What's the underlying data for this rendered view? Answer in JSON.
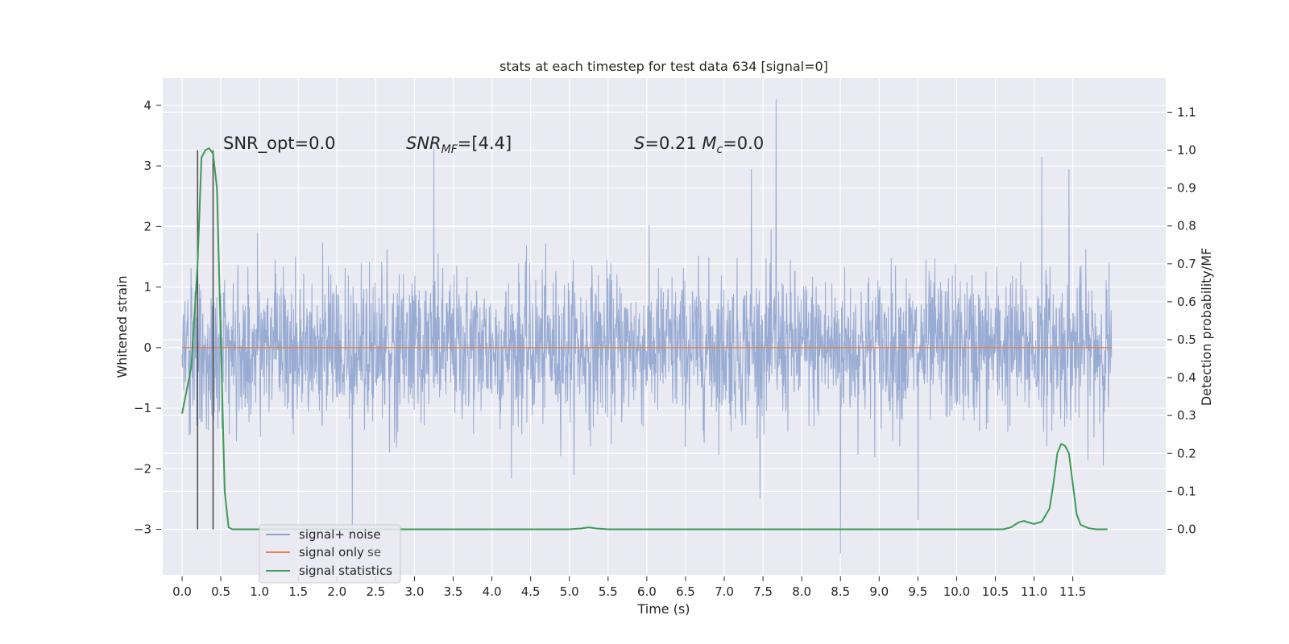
{
  "chart_data": {
    "type": "line",
    "title": "stats at each timestep for test data 634 [signal=0]",
    "xlabel": "Time (s)",
    "ylabel": "Whitened strain",
    "y2label": "Detection probability/MF",
    "xlim": [
      -0.25,
      12.7
    ],
    "ylim": [
      -3.75,
      4.45
    ],
    "y2lim": [
      -0.12,
      1.19
    ],
    "xticks": [
      0.0,
      0.5,
      1.0,
      1.5,
      2.0,
      2.5,
      3.0,
      3.5,
      4.0,
      4.5,
      5.0,
      5.5,
      6.0,
      6.5,
      7.0,
      7.5,
      8.0,
      8.5,
      9.0,
      9.5,
      10.0,
      10.5,
      11.0,
      11.5
    ],
    "xtick_labels": [
      "0.0",
      "0.5",
      "1.0",
      "1.5",
      "2.0",
      "2.5",
      "3.0",
      "3.5",
      "4.0",
      "4.5",
      "5.0",
      "5.5",
      "6.0",
      "6.5",
      "7.0",
      "7.5",
      "8.0",
      "8.5",
      "9.0",
      "9.5",
      "10.0",
      "10.5",
      "11.0",
      "11.5"
    ],
    "yticks": [
      -3,
      -2,
      -1,
      0,
      1,
      2,
      3,
      4
    ],
    "ytick_labels": [
      "−3",
      "−2",
      "−1",
      "0",
      "1",
      "2",
      "3",
      "4"
    ],
    "y2ticks": [
      0.0,
      0.1,
      0.2,
      0.3,
      0.4,
      0.5,
      0.6,
      0.7,
      0.8,
      0.9,
      1.0,
      1.1
    ],
    "y2tick_labels": [
      "0.0",
      "0.1",
      "0.2",
      "0.3",
      "0.4",
      "0.5",
      "0.6",
      "0.7",
      "0.8",
      "0.9",
      "1.0",
      "1.1"
    ],
    "grid": true,
    "legend_position": "lower-left",
    "series": [
      {
        "name": "signal+ noise",
        "color": "#8fa4cf",
        "axis": "left",
        "t_range": [
          0.0,
          12.0
        ],
        "typical_amplitude": [
          -1.0,
          1.0
        ],
        "spikes": [
          {
            "x": 7.67,
            "y": 4.1
          },
          {
            "x": 3.25,
            "y": 3.3
          },
          {
            "x": 11.1,
            "y": 3.15
          },
          {
            "x": 11.45,
            "y": 2.95
          },
          {
            "x": 7.35,
            "y": 2.95
          },
          {
            "x": 8.5,
            "y": -3.4
          },
          {
            "x": 2.2,
            "y": -3.1
          },
          {
            "x": 9.5,
            "y": -2.85
          }
        ]
      },
      {
        "name": "signal only",
        "color": "#dd8452",
        "axis": "left",
        "x": [
          0.0,
          12.0
        ],
        "y": [
          0.0,
          0.0
        ]
      },
      {
        "name": "signal statistics",
        "color": "#3d9b55",
        "axis": "right",
        "x": [
          0.0,
          0.12,
          0.2,
          0.25,
          0.3,
          0.35,
          0.4,
          0.45,
          0.5,
          0.55,
          0.6,
          0.65,
          1.0,
          5.0,
          5.15,
          5.25,
          5.35,
          5.5,
          6.0,
          10.6,
          10.7,
          10.8,
          10.87,
          10.93,
          11.0,
          11.1,
          11.2,
          11.25,
          11.3,
          11.35,
          11.4,
          11.45,
          11.5,
          11.55,
          11.6,
          11.7,
          11.8,
          11.95
        ],
        "y": [
          0.305,
          0.43,
          0.7,
          0.98,
          1.0,
          1.005,
          0.99,
          0.9,
          0.5,
          0.1,
          0.005,
          0.0,
          0.0,
          0.0,
          0.002,
          0.005,
          0.002,
          0.0,
          0.0,
          0.0,
          0.005,
          0.018,
          0.022,
          0.018,
          0.014,
          0.02,
          0.055,
          0.12,
          0.2,
          0.225,
          0.22,
          0.2,
          0.12,
          0.04,
          0.012,
          0.003,
          0.0,
          0.0
        ]
      }
    ],
    "vertical_lines": [
      {
        "x": 0.2,
        "color": "#4a4a4a"
      },
      {
        "x": 0.4,
        "color": "#4a4a4a"
      }
    ],
    "annotations": [
      {
        "x": 0.2,
        "y": 3.3,
        "text": "SNR_opt=0.0"
      },
      {
        "x": 2.6,
        "y": 3.3,
        "text": "SNR_MF=[4.4]"
      },
      {
        "x": 5.6,
        "y": 3.3,
        "text": "S=0.21   M_c=0.0"
      }
    ],
    "legend_overlap_text": "se"
  },
  "colors": {
    "background": "#ffffff",
    "plot_background": "#eaeaf2",
    "grid": "#ffffff",
    "text": "#262626"
  }
}
